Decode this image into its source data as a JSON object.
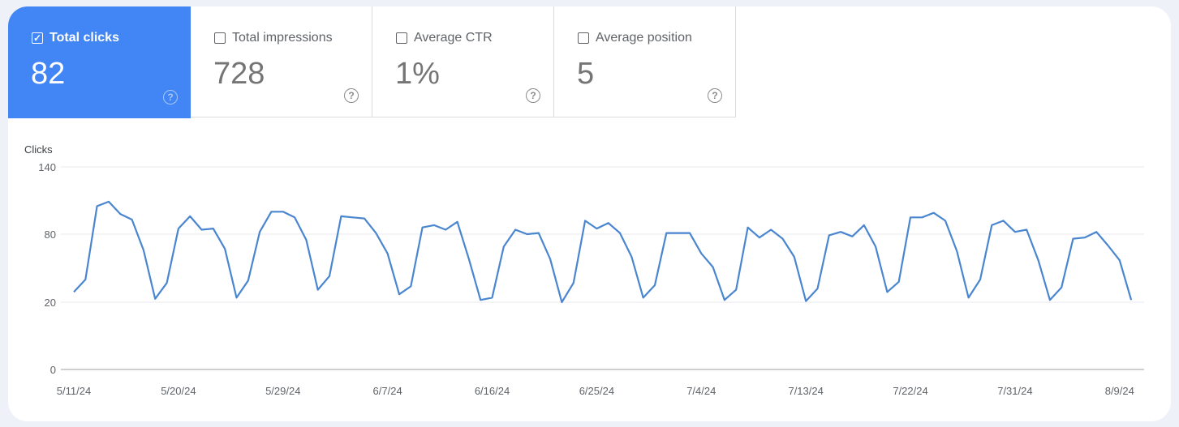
{
  "metrics": [
    {
      "label": "Total clicks",
      "value": "82",
      "checked": true
    },
    {
      "label": "Total impressions",
      "value": "728",
      "checked": false
    },
    {
      "label": "Average CTR",
      "value": "1%",
      "checked": false
    },
    {
      "label": "Average position",
      "value": "5",
      "checked": false
    }
  ],
  "help_icon": "?",
  "check_icon": "✓",
  "colors": {
    "accent": "#4285f4",
    "line": "#4a86d0"
  },
  "chart_data": {
    "type": "line",
    "ylabel": "Clicks",
    "yticks": [
      0,
      20,
      80,
      140
    ],
    "ylim": [
      0,
      140
    ],
    "grid": true,
    "xtick_labels": [
      "5/11/24",
      "5/20/24",
      "5/29/24",
      "6/7/24",
      "6/16/24",
      "6/25/24",
      "7/4/24",
      "7/13/24",
      "7/22/24",
      "7/31/24",
      "8/9/24"
    ],
    "x": [
      "5/11/24",
      "5/12/24",
      "5/13/24",
      "5/14/24",
      "5/15/24",
      "5/16/24",
      "5/17/24",
      "5/18/24",
      "5/19/24",
      "5/20/24",
      "5/21/24",
      "5/22/24",
      "5/23/24",
      "5/24/24",
      "5/25/24",
      "5/26/24",
      "5/27/24",
      "5/28/24",
      "5/29/24",
      "5/30/24",
      "5/31/24",
      "6/1/24",
      "6/2/24",
      "6/3/24",
      "6/4/24",
      "6/5/24",
      "6/6/24",
      "6/7/24",
      "6/8/24",
      "6/9/24",
      "6/10/24",
      "6/11/24",
      "6/12/24",
      "6/13/24",
      "6/14/24",
      "6/15/24",
      "6/16/24",
      "6/17/24",
      "6/18/24",
      "6/19/24",
      "6/20/24",
      "6/21/24",
      "6/22/24",
      "6/23/24",
      "6/24/24",
      "6/25/24",
      "6/26/24",
      "6/27/24",
      "6/28/24",
      "6/29/24",
      "6/30/24",
      "7/1/24",
      "7/2/24",
      "7/3/24",
      "7/4/24",
      "7/5/24",
      "7/6/24",
      "7/7/24",
      "7/8/24",
      "7/9/24",
      "7/10/24",
      "7/11/24",
      "7/12/24",
      "7/13/24",
      "7/14/24",
      "7/15/24",
      "7/16/24",
      "7/17/24",
      "7/18/24",
      "7/19/24",
      "7/20/24",
      "7/21/24",
      "7/22/24",
      "7/23/24",
      "7/24/24",
      "7/25/24",
      "7/26/24",
      "7/27/24",
      "7/28/24",
      "7/29/24",
      "7/30/24",
      "7/31/24",
      "8/1/24",
      "8/2/24",
      "8/3/24",
      "8/4/24",
      "8/5/24",
      "8/6/24",
      "8/7/24",
      "8/8/24",
      "8/9/24",
      "8/10/24"
    ],
    "values": [
      29,
      40,
      105,
      109,
      98,
      93,
      66,
      23,
      37,
      85,
      96,
      84,
      85,
      67,
      24,
      39,
      82,
      100,
      100,
      95,
      75,
      31,
      43,
      96,
      95,
      94,
      81,
      63,
      27,
      34,
      86,
      88,
      84,
      91,
      58,
      22,
      24,
      69,
      84,
      80,
      81,
      58,
      20,
      37,
      92,
      85,
      90,
      81,
      60,
      24,
      35,
      81,
      81,
      81,
      63,
      51,
      22,
      31,
      86,
      77,
      84,
      76,
      60,
      21,
      32,
      79,
      82,
      78,
      88,
      69,
      29,
      38,
      95,
      95,
      99,
      92,
      65,
      24,
      40,
      88,
      92,
      82,
      84,
      57,
      22,
      33,
      76,
      77,
      82,
      70,
      57,
      22
    ]
  }
}
